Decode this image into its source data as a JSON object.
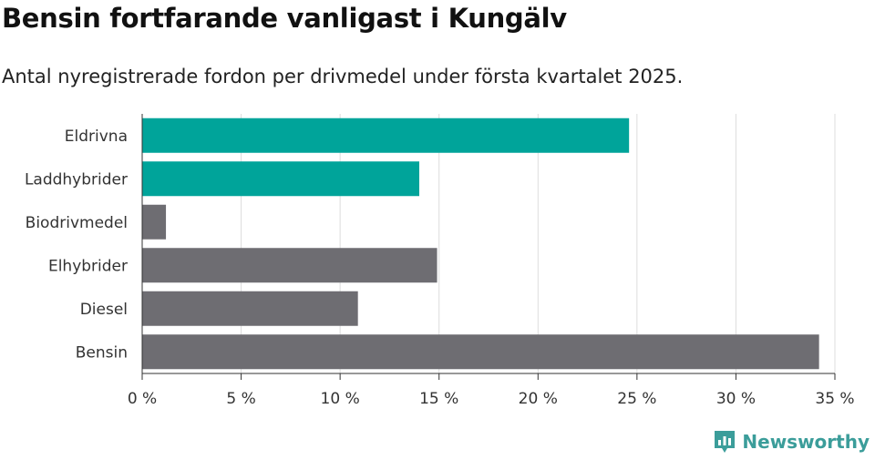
{
  "title": "Bensin fortfarande vanligast i Kungälv",
  "subtitle": "Antal nyregistrerade fordon per drivmedel under första kvartalet 2025.",
  "brand": {
    "name": "Newsworthy",
    "icon": "newsworthy-logo-icon",
    "color": "#3b9d9a"
  },
  "chart_data": {
    "type": "bar",
    "orientation": "horizontal",
    "categories": [
      "Eldrivna",
      "Laddhybrider",
      "Biodrivmedel",
      "Elhybrider",
      "Diesel",
      "Bensin"
    ],
    "values": [
      24.6,
      14.0,
      1.2,
      14.9,
      10.9,
      34.2
    ],
    "bar_colors": [
      "#00a49a",
      "#00a49a",
      "#6e6d72",
      "#6e6d72",
      "#6e6d72",
      "#6e6d72"
    ],
    "xlim": [
      0,
      35
    ],
    "x_ticks": [
      0,
      5,
      10,
      15,
      20,
      25,
      30,
      35
    ],
    "x_tick_labels": [
      "0 %",
      "5 %",
      "10 %",
      "15 %",
      "20 %",
      "25 %",
      "30 %",
      "35 %"
    ],
    "xlabel": "",
    "ylabel": "",
    "grid": true,
    "grid_color": "#dddddd"
  }
}
